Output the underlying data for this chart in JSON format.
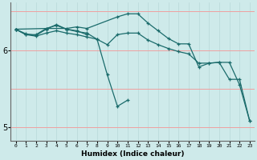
{
  "xlabel": "Humidex (Indice chaleur)",
  "bg_color": "#ceeaea",
  "line_color": "#1a6b6b",
  "xlim": [
    -0.5,
    23.5
  ],
  "ylim": [
    4.82,
    6.62
  ],
  "yticks": [
    5,
    6
  ],
  "xticks": [
    0,
    1,
    2,
    3,
    4,
    5,
    6,
    7,
    8,
    9,
    10,
    11,
    12,
    13,
    14,
    15,
    16,
    17,
    18,
    19,
    20,
    21,
    22,
    23
  ],
  "lines": [
    {
      "x": [
        0,
        1,
        2,
        3,
        4,
        5,
        6,
        7,
        8,
        9,
        10,
        11,
        12,
        13,
        14,
        15,
        16,
        17,
        18,
        19,
        20,
        21,
        22,
        23
      ],
      "y": [
        6.27,
        6.2,
        6.18,
        6.22,
        6.25,
        6.22,
        6.2,
        6.17,
        6.14,
        6.07,
        6.2,
        6.22,
        6.22,
        6.13,
        6.07,
        6.02,
        5.98,
        5.95,
        5.83,
        5.83,
        5.84,
        5.62,
        5.62,
        5.08
      ]
    },
    {
      "x": [
        0,
        1,
        2,
        3,
        4,
        5,
        6,
        7,
        8,
        9,
        10,
        11
      ],
      "y": [
        6.27,
        6.2,
        6.2,
        6.28,
        6.32,
        6.27,
        6.24,
        6.22,
        6.14,
        5.68,
        5.27,
        5.35
      ]
    },
    {
      "x": [
        0,
        1,
        2,
        3,
        4,
        5,
        6,
        7
      ],
      "y": [
        6.27,
        6.21,
        6.19,
        6.27,
        6.33,
        6.27,
        6.25,
        6.2
      ]
    },
    {
      "x": [
        0,
        3,
        5,
        6,
        7,
        10,
        11,
        12,
        13,
        14,
        15,
        16,
        17,
        18,
        19,
        20,
        21,
        22,
        23
      ],
      "y": [
        6.27,
        6.28,
        6.28,
        6.3,
        6.28,
        6.43,
        6.47,
        6.47,
        6.35,
        6.25,
        6.15,
        6.08,
        6.08,
        5.78,
        5.83,
        5.84,
        5.84,
        5.55,
        5.08
      ]
    }
  ]
}
